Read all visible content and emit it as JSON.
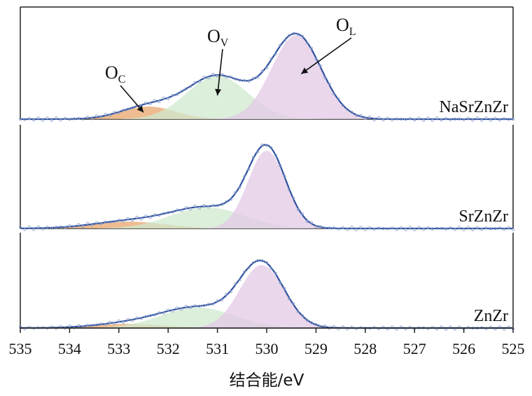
{
  "chart_data": {
    "type": "area",
    "xlabel": "结合能/eV",
    "ylabel": "",
    "xlim": [
      535,
      525
    ],
    "x_reversed": true,
    "x_ticks": [
      535,
      534,
      533,
      532,
      531,
      530,
      529,
      528,
      527,
      526,
      525
    ],
    "grid": false,
    "legend": "none",
    "colors": {
      "envelope": "#2d4f9e",
      "raw": "#8fa3cc",
      "O_C": "#e9a46c",
      "O_V": "#cfe9cf",
      "O_L": "#e3c9e6",
      "axis": "#222222"
    },
    "annotations": [
      {
        "text": "O",
        "sub": "C",
        "target": "O_C",
        "x": 532.5
      },
      {
        "text": "O",
        "sub": "V",
        "target": "O_V",
        "x": 531.0
      },
      {
        "text": "O",
        "sub": "L",
        "target": "O_L",
        "x": 529.3
      }
    ],
    "panels": [
      {
        "label": "NaSrZnZr",
        "peaks": [
          {
            "name": "O_C",
            "center": 532.4,
            "amplitude": 0.12,
            "width": 0.55
          },
          {
            "name": "O_V",
            "center": 531.0,
            "amplitude": 0.41,
            "width": 0.62
          },
          {
            "name": "O_L",
            "center": 529.4,
            "amplitude": 0.8,
            "width": 0.5
          }
        ]
      },
      {
        "label": "SrZnZr",
        "peaks": [
          {
            "name": "O_C",
            "center": 532.8,
            "amplitude": 0.065,
            "width": 0.75
          },
          {
            "name": "O_V",
            "center": 531.2,
            "amplitude": 0.2,
            "width": 0.75
          },
          {
            "name": "O_L",
            "center": 530.0,
            "amplitude": 0.74,
            "width": 0.38
          }
        ]
      },
      {
        "label": "ZnZr",
        "peaks": [
          {
            "name": "O_C",
            "center": 532.8,
            "amplitude": 0.045,
            "width": 0.7
          },
          {
            "name": "O_V",
            "center": 531.4,
            "amplitude": 0.22,
            "width": 0.75
          },
          {
            "name": "O_L",
            "center": 530.1,
            "amplitude": 0.68,
            "width": 0.45
          }
        ]
      }
    ]
  }
}
